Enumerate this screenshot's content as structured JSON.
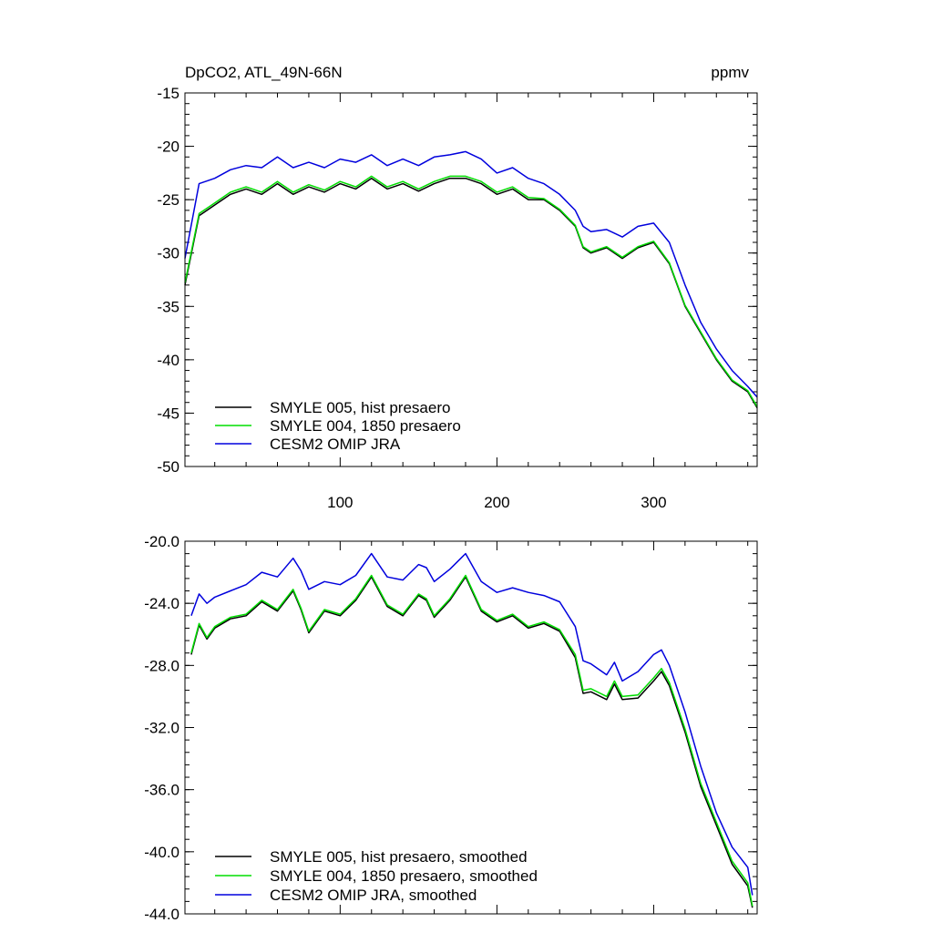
{
  "figure": {
    "title_left": "DpCO2, ATL_49N-66N",
    "title_right": "ppmv"
  },
  "chart_data": [
    {
      "type": "line",
      "panel": "top",
      "xlim": [
        1,
        366
      ],
      "ylim": [
        -50,
        -15
      ],
      "x_ticks": [
        100,
        200,
        300
      ],
      "x_tick_labels": [
        "100",
        "200",
        "300"
      ],
      "y_ticks": [
        -50,
        -45,
        -40,
        -35,
        -30,
        -25,
        -20,
        -15
      ],
      "y_tick_labels": [
        "-50",
        "-45",
        "-40",
        "-35",
        "-30",
        "-25",
        "-20",
        "-15"
      ],
      "legend_position": "bottom-left",
      "x": [
        1,
        10,
        20,
        30,
        40,
        50,
        60,
        70,
        80,
        90,
        100,
        110,
        120,
        130,
        140,
        150,
        160,
        170,
        180,
        190,
        200,
        210,
        220,
        230,
        240,
        250,
        255,
        260,
        270,
        280,
        290,
        300,
        310,
        320,
        330,
        340,
        350,
        360,
        366
      ],
      "series": [
        {
          "name": "SMYLE 005, hist presaero",
          "color": "#000000",
          "values": [
            -33,
            -26.5,
            -25.5,
            -24.5,
            -24.0,
            -24.5,
            -23.5,
            -24.5,
            -23.8,
            -24.3,
            -23.5,
            -24.0,
            -23.0,
            -24.0,
            -23.5,
            -24.2,
            -23.5,
            -23.0,
            -23.0,
            -23.5,
            -24.5,
            -24.0,
            -25.0,
            -25.0,
            -26.0,
            -27.5,
            -29.5,
            -30.0,
            -29.5,
            -30.5,
            -29.5,
            -29.0,
            -31.0,
            -35.0,
            -37.5,
            -40.0,
            -42.0,
            -43.0,
            -44.5
          ]
        },
        {
          "name": "SMYLE 004, 1850 presaero",
          "color": "#00dd00",
          "values": [
            -32.8,
            -26.3,
            -25.3,
            -24.3,
            -23.8,
            -24.3,
            -23.3,
            -24.3,
            -23.6,
            -24.1,
            -23.3,
            -23.8,
            -22.8,
            -23.8,
            -23.3,
            -24.0,
            -23.3,
            -22.8,
            -22.8,
            -23.3,
            -24.3,
            -23.8,
            -24.8,
            -24.9,
            -25.9,
            -27.4,
            -29.4,
            -29.9,
            -29.4,
            -30.4,
            -29.4,
            -28.9,
            -30.9,
            -34.9,
            -37.4,
            -39.9,
            -41.9,
            -42.9,
            -44.4
          ]
        },
        {
          "name": "CESM2 OMIP JRA",
          "color": "#0000dd",
          "values": [
            -30.5,
            -23.5,
            -23.0,
            -22.2,
            -21.8,
            -22.0,
            -21.0,
            -22.0,
            -21.5,
            -22.0,
            -21.2,
            -21.5,
            -20.8,
            -21.8,
            -21.2,
            -21.8,
            -21.0,
            -20.8,
            -20.5,
            -21.2,
            -22.5,
            -22.0,
            -23.0,
            -23.5,
            -24.5,
            -26.0,
            -27.5,
            -28.0,
            -27.8,
            -28.5,
            -27.5,
            -27.2,
            -29.0,
            -33.0,
            -36.5,
            -39.0,
            -41.0,
            -42.5,
            -43.5
          ]
        }
      ]
    },
    {
      "type": "line",
      "panel": "bottom",
      "xlim": [
        1,
        366
      ],
      "ylim": [
        -44,
        -20
      ],
      "x_ticks": [
        100,
        200,
        300
      ],
      "y_ticks": [
        -44,
        -40,
        -36,
        -32,
        -28,
        -24,
        -20
      ],
      "y_tick_labels": [
        "-44.0",
        "-40.0",
        "-36.0",
        "-32.0",
        "-28.0",
        "-24.0",
        "-20.0"
      ],
      "legend_position": "bottom-left",
      "x": [
        5,
        10,
        15,
        20,
        30,
        40,
        50,
        60,
        70,
        75,
        80,
        90,
        100,
        110,
        120,
        130,
        140,
        150,
        155,
        160,
        170,
        180,
        190,
        200,
        210,
        220,
        230,
        240,
        250,
        255,
        260,
        270,
        275,
        280,
        290,
        300,
        305,
        310,
        320,
        330,
        340,
        350,
        360,
        363
      ],
      "series": [
        {
          "name": "SMYLE 005, hist presaero, smoothed",
          "color": "#000000",
          "values": [
            -27.3,
            -25.4,
            -26.3,
            -25.6,
            -25.0,
            -24.8,
            -23.9,
            -24.5,
            -23.2,
            -24.4,
            -25.9,
            -24.5,
            -24.8,
            -23.8,
            -22.3,
            -24.2,
            -24.8,
            -23.5,
            -23.8,
            -24.9,
            -23.8,
            -22.3,
            -24.5,
            -25.2,
            -24.8,
            -25.6,
            -25.3,
            -25.8,
            -27.5,
            -29.8,
            -29.7,
            -30.2,
            -29.2,
            -30.2,
            -30.1,
            -29.0,
            -28.4,
            -29.3,
            -32.3,
            -35.8,
            -38.3,
            -40.8,
            -42.2,
            -43.6
          ]
        },
        {
          "name": "SMYLE 004, 1850 presaero, smoothed",
          "color": "#00dd00",
          "values": [
            -27.2,
            -25.3,
            -26.2,
            -25.5,
            -24.9,
            -24.7,
            -23.8,
            -24.4,
            -23.1,
            -24.3,
            -25.8,
            -24.4,
            -24.7,
            -23.7,
            -22.2,
            -24.1,
            -24.7,
            -23.4,
            -23.7,
            -24.8,
            -23.7,
            -22.2,
            -24.4,
            -25.1,
            -24.7,
            -25.5,
            -25.2,
            -25.7,
            -27.3,
            -29.6,
            -29.5,
            -30.0,
            -29.0,
            -30.0,
            -29.9,
            -28.8,
            -28.2,
            -29.1,
            -32.1,
            -35.6,
            -38.1,
            -40.6,
            -42.0,
            -43.5
          ]
        },
        {
          "name": "CESM2 OMIP JRA, smoothed",
          "color": "#0000dd",
          "values": [
            -24.8,
            -23.4,
            -24.0,
            -23.6,
            -23.2,
            -22.8,
            -22.0,
            -22.3,
            -21.1,
            -21.9,
            -23.1,
            -22.6,
            -22.8,
            -22.2,
            -20.8,
            -22.3,
            -22.5,
            -21.5,
            -21.7,
            -22.6,
            -21.8,
            -20.8,
            -22.6,
            -23.3,
            -23.0,
            -23.3,
            -23.5,
            -23.9,
            -25.5,
            -27.7,
            -27.9,
            -28.6,
            -27.8,
            -29.0,
            -28.4,
            -27.3,
            -27.0,
            -28.0,
            -31.0,
            -34.5,
            -37.5,
            -39.7,
            -41.0,
            -42.8
          ]
        }
      ]
    }
  ]
}
